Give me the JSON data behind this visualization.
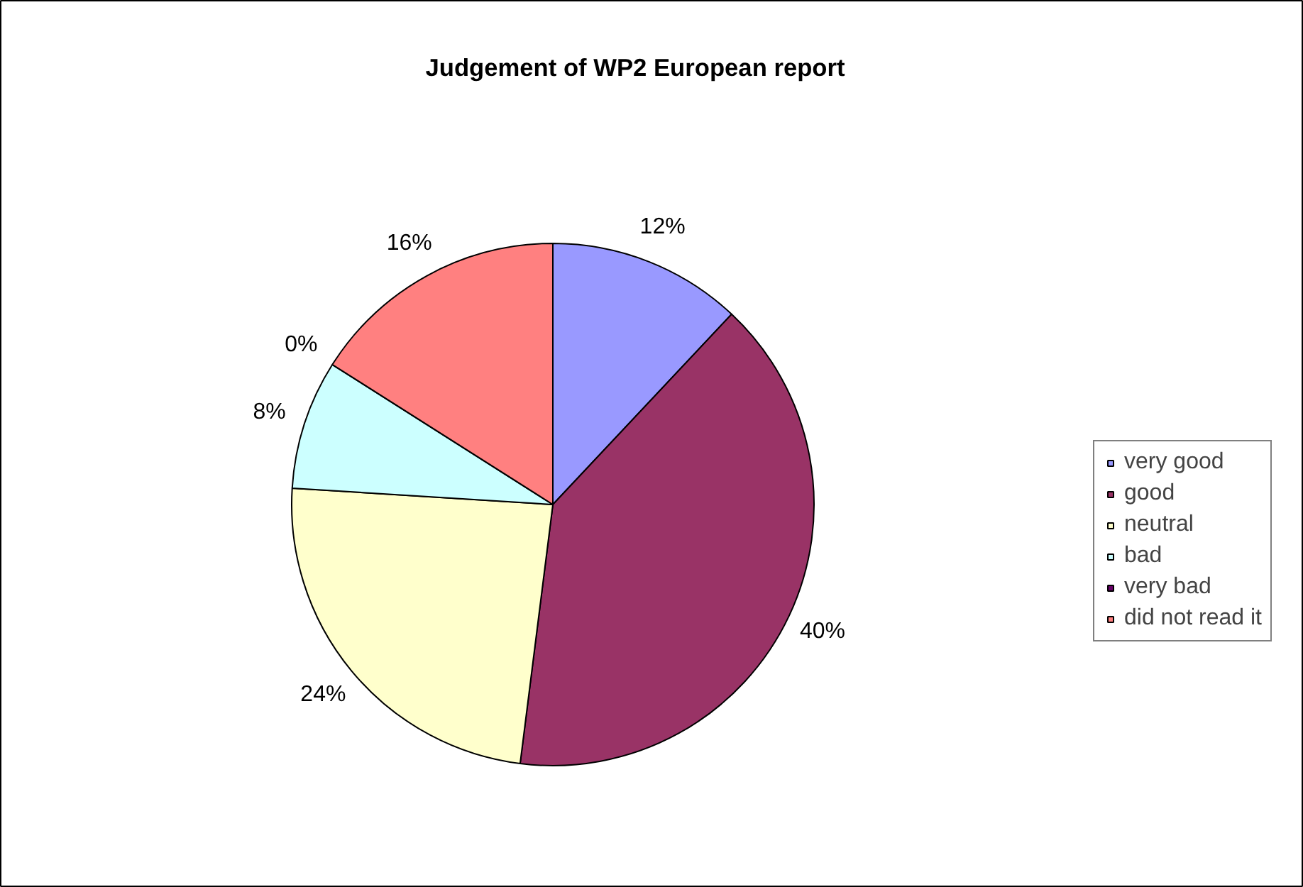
{
  "chart_data": {
    "type": "pie",
    "title": "Judgement of WP2 European report",
    "categories": [
      "very good",
      "good",
      "neutral",
      "bad",
      "very bad",
      "did not read it"
    ],
    "values": [
      12,
      40,
      24,
      8,
      0,
      16
    ],
    "colors": [
      "#9999ff",
      "#993366",
      "#ffffcc",
      "#ccffff",
      "#660066",
      "#ff8080"
    ],
    "value_labels": [
      "12%",
      "40%",
      "24%",
      "8%",
      "0%",
      "16%"
    ],
    "legend": "right"
  }
}
